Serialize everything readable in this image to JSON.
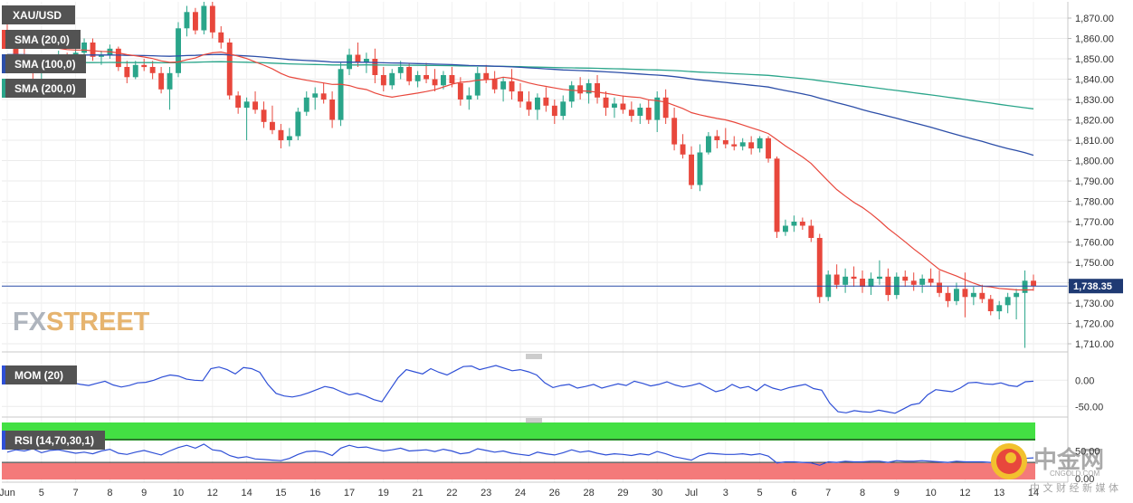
{
  "symbol": "XAU/USD",
  "last_price_label": "1,738.35",
  "legend": [
    {
      "label": "SMA (20,0)",
      "color": "#e8473c"
    },
    {
      "label": "SMA (100,0)",
      "color": "#2c4ea8"
    },
    {
      "label": "SMA (200,0)",
      "color": "#2aa58a"
    }
  ],
  "watermark": {
    "prefix": "FX",
    "suffix": "STREET"
  },
  "brand": {
    "name": "中金网",
    "url": "CNGOLD.COM",
    "slogan": "中 文 财 经 新 媒 体"
  },
  "colors": {
    "up_candle": "#2aa58a",
    "down_candle": "#e8473c",
    "price_line": "#2c4ea8",
    "momentum": "#2e4fd6",
    "rsi": "#2e4fd6",
    "rsi_overbought": "#43e043",
    "rsi_oversold": "#f47a7a",
    "legend_bg": "#535353"
  },
  "chart_data": [
    {
      "type": "candlestick",
      "title": "XAU/USD",
      "y_ticks": [
        "1,870.00",
        "1,860.00",
        "1,850.00",
        "1,840.00",
        "1,830.00",
        "1,820.00",
        "1,810.00",
        "1,800.00",
        "1,790.00",
        "1,780.00",
        "1,770.00",
        "1,760.00",
        "1,750.00",
        "1,740.00",
        "1,730.00",
        "1,720.00",
        "1,710.00"
      ],
      "ylim": [
        1707,
        1877
      ],
      "x_tick_labels": [
        "Jun",
        "5",
        "7",
        "8",
        "9",
        "10",
        "12",
        "14",
        "15",
        "16",
        "17",
        "19",
        "21",
        "22",
        "23",
        "24",
        "26",
        "28",
        "29",
        "30",
        "Jul",
        "3",
        "5",
        "6",
        "7",
        "8",
        "9",
        "10",
        "12",
        "13",
        "14"
      ],
      "last_price": 1738.35,
      "series": [
        {
          "name": "SMA (20,0)"
        },
        {
          "name": "SMA (100,0)"
        },
        {
          "name": "SMA (200,0)"
        }
      ],
      "ohlc": [
        [
          1864,
          1868,
          1859,
          1861
        ],
        [
          1861,
          1863,
          1849,
          1852
        ],
        [
          1852,
          1856,
          1844,
          1846
        ],
        [
          1846,
          1849,
          1840,
          1843
        ],
        [
          1843,
          1848,
          1838,
          1845
        ],
        [
          1845,
          1852,
          1843,
          1850
        ],
        [
          1850,
          1854,
          1847,
          1852
        ],
        [
          1852,
          1853,
          1844,
          1846
        ],
        [
          1846,
          1855,
          1845,
          1853
        ],
        [
          1853,
          1860,
          1851,
          1858
        ],
        [
          1858,
          1860,
          1849,
          1851
        ],
        [
          1851,
          1854,
          1847,
          1852
        ],
        [
          1852,
          1857,
          1850,
          1855
        ],
        [
          1855,
          1856,
          1844,
          1846
        ],
        [
          1846,
          1849,
          1838,
          1841
        ],
        [
          1841,
          1849,
          1840,
          1847
        ],
        [
          1847,
          1850,
          1844,
          1846
        ],
        [
          1846,
          1849,
          1840,
          1843
        ],
        [
          1843,
          1846,
          1833,
          1835
        ],
        [
          1835,
          1846,
          1825,
          1843
        ],
        [
          1843,
          1868,
          1841,
          1865
        ],
        [
          1865,
          1876,
          1861,
          1873
        ],
        [
          1873,
          1875,
          1862,
          1864
        ],
        [
          1864,
          1878,
          1862,
          1876
        ],
        [
          1876,
          1878,
          1860,
          1863
        ],
        [
          1863,
          1866,
          1855,
          1858
        ],
        [
          1858,
          1860,
          1830,
          1832
        ],
        [
          1832,
          1834,
          1823,
          1826
        ],
        [
          1826,
          1831,
          1810,
          1829
        ],
        [
          1829,
          1834,
          1823,
          1825
        ],
        [
          1825,
          1829,
          1816,
          1819
        ],
        [
          1819,
          1827,
          1813,
          1815
        ],
        [
          1815,
          1818,
          1806,
          1810
        ],
        [
          1810,
          1816,
          1807,
          1812
        ],
        [
          1812,
          1826,
          1810,
          1824
        ],
        [
          1824,
          1834,
          1822,
          1831
        ],
        [
          1831,
          1836,
          1825,
          1833
        ],
        [
          1833,
          1838,
          1828,
          1830
        ],
        [
          1830,
          1834,
          1816,
          1820
        ],
        [
          1820,
          1848,
          1817,
          1845
        ],
        [
          1845,
          1855,
          1842,
          1852
        ],
        [
          1852,
          1858,
          1846,
          1848
        ],
        [
          1848,
          1853,
          1843,
          1850
        ],
        [
          1850,
          1855,
          1838,
          1842
        ],
        [
          1842,
          1846,
          1834,
          1837
        ],
        [
          1837,
          1845,
          1835,
          1843
        ],
        [
          1843,
          1849,
          1840,
          1846
        ],
        [
          1846,
          1848,
          1837,
          1839
        ],
        [
          1839,
          1844,
          1836,
          1842
        ],
        [
          1842,
          1848,
          1838,
          1840
        ],
        [
          1840,
          1845,
          1834,
          1837
        ],
        [
          1837,
          1844,
          1835,
          1842
        ],
        [
          1842,
          1846,
          1836,
          1838
        ],
        [
          1838,
          1841,
          1827,
          1830
        ],
        [
          1830,
          1836,
          1825,
          1832
        ],
        [
          1832,
          1846,
          1830,
          1843
        ],
        [
          1843,
          1847,
          1838,
          1840
        ],
        [
          1840,
          1844,
          1833,
          1835
        ],
        [
          1835,
          1841,
          1829,
          1839
        ],
        [
          1839,
          1845,
          1830,
          1834
        ],
        [
          1834,
          1838,
          1826,
          1829
        ],
        [
          1829,
          1834,
          1822,
          1825
        ],
        [
          1825,
          1833,
          1820,
          1831
        ],
        [
          1831,
          1836,
          1824,
          1827
        ],
        [
          1827,
          1830,
          1818,
          1822
        ],
        [
          1822,
          1832,
          1820,
          1829
        ],
        [
          1829,
          1839,
          1826,
          1837
        ],
        [
          1837,
          1841,
          1830,
          1833
        ],
        [
          1833,
          1840,
          1828,
          1838
        ],
        [
          1838,
          1842,
          1828,
          1831
        ],
        [
          1831,
          1834,
          1822,
          1826
        ],
        [
          1826,
          1831,
          1821,
          1828
        ],
        [
          1828,
          1832,
          1823,
          1825
        ],
        [
          1825,
          1829,
          1819,
          1822
        ],
        [
          1822,
          1828,
          1818,
          1826
        ],
        [
          1826,
          1830,
          1818,
          1820
        ],
        [
          1820,
          1834,
          1814,
          1831
        ],
        [
          1831,
          1835,
          1818,
          1821
        ],
        [
          1821,
          1826,
          1805,
          1808
        ],
        [
          1808,
          1813,
          1801,
          1803
        ],
        [
          1803,
          1807,
          1786,
          1788
        ],
        [
          1788,
          1808,
          1785,
          1804
        ],
        [
          1804,
          1814,
          1803,
          1812
        ],
        [
          1812,
          1815,
          1806,
          1810
        ],
        [
          1810,
          1816,
          1806,
          1808
        ],
        [
          1808,
          1812,
          1805,
          1807
        ],
        [
          1807,
          1811,
          1805,
          1809
        ],
        [
          1809,
          1812,
          1803,
          1806
        ],
        [
          1806,
          1812,
          1804,
          1811
        ],
        [
          1811,
          1812,
          1799,
          1801
        ],
        [
          1801,
          1802,
          1762,
          1765
        ],
        [
          1765,
          1771,
          1763,
          1768
        ],
        [
          1768,
          1773,
          1765,
          1770
        ],
        [
          1770,
          1772,
          1766,
          1768
        ],
        [
          1768,
          1771,
          1760,
          1762
        ],
        [
          1762,
          1764,
          1730,
          1733
        ],
        [
          1733,
          1746,
          1731,
          1744
        ],
        [
          1744,
          1749,
          1737,
          1739
        ],
        [
          1739,
          1747,
          1735,
          1743
        ],
        [
          1743,
          1748,
          1738,
          1742
        ],
        [
          1742,
          1746,
          1735,
          1738
        ],
        [
          1738,
          1745,
          1734,
          1742
        ],
        [
          1742,
          1751,
          1739,
          1743
        ],
        [
          1743,
          1747,
          1731,
          1734
        ],
        [
          1734,
          1745,
          1732,
          1743
        ],
        [
          1743,
          1746,
          1738,
          1741
        ],
        [
          1741,
          1745,
          1736,
          1739
        ],
        [
          1739,
          1744,
          1735,
          1742
        ],
        [
          1742,
          1747,
          1738,
          1740
        ],
        [
          1740,
          1746,
          1733,
          1735
        ],
        [
          1735,
          1738,
          1728,
          1731
        ],
        [
          1731,
          1740,
          1729,
          1737
        ],
        [
          1737,
          1745,
          1723,
          1733
        ],
        [
          1733,
          1738,
          1729,
          1735
        ],
        [
          1735,
          1739,
          1730,
          1732
        ],
        [
          1732,
          1734,
          1724,
          1726
        ],
        [
          1726,
          1731,
          1722,
          1729
        ],
        [
          1729,
          1735,
          1725,
          1733
        ],
        [
          1733,
          1737,
          1722,
          1735
        ],
        [
          1735,
          1746,
          1708,
          1741
        ],
        [
          1741,
          1744,
          1736,
          1738.35
        ]
      ]
    },
    {
      "type": "line",
      "title": "MOM (20)",
      "y_ticks": [
        "0.00",
        "-50.00"
      ],
      "ylim": [
        -65,
        28
      ],
      "series": [
        {
          "name": "MOM (20)",
          "values": [
            2,
            8,
            12,
            5,
            -2,
            4,
            6,
            3,
            -5,
            -8,
            -10,
            -6,
            -2,
            -9,
            -13,
            -10,
            -5,
            -4,
            0,
            6,
            10,
            8,
            2,
            0,
            -1,
            22,
            25,
            20,
            12,
            24,
            22,
            15,
            -8,
            -25,
            -30,
            -32,
            -29,
            -24,
            -18,
            -12,
            -15,
            -22,
            -28,
            -25,
            -30,
            -37,
            -41,
            -18,
            5,
            20,
            16,
            12,
            22,
            15,
            10,
            18,
            26,
            27,
            20,
            24,
            28,
            23,
            18,
            20,
            16,
            10,
            -5,
            -14,
            -10,
            -8,
            -15,
            -12,
            -8,
            -15,
            -11,
            -7,
            -10,
            -2,
            -6,
            -11,
            -8,
            -3,
            -9,
            -13,
            -10,
            -6,
            -14,
            -22,
            -18,
            -8,
            -15,
            -12,
            -20,
            -8,
            -15,
            -19,
            -14,
            -11,
            -8,
            -16,
            -19,
            -44,
            -60,
            -62,
            -58,
            -60,
            -61,
            -57,
            -60,
            -63,
            -55,
            -47,
            -44,
            -28,
            -18,
            -20,
            -22,
            -15,
            -5,
            -4,
            -7,
            -8,
            -5,
            -10,
            -12,
            -3,
            -2
          ]
        }
      ]
    },
    {
      "type": "line",
      "title": "RSI (14,70,30,1)",
      "y_ticks": [
        "50.00",
        "0.00"
      ],
      "ylim": [
        0,
        100
      ],
      "overbought": 70,
      "oversold": 30,
      "series": [
        {
          "name": "RSI (14,70,30,1)",
          "values": [
            48,
            52,
            50,
            54,
            47,
            51,
            52,
            49,
            46,
            48,
            45,
            50,
            53,
            46,
            44,
            48,
            51,
            47,
            43,
            50,
            56,
            60,
            55,
            62,
            52,
            50,
            42,
            38,
            40,
            36,
            35,
            34,
            33,
            37,
            44,
            49,
            50,
            48,
            42,
            55,
            60,
            56,
            57,
            53,
            50,
            52,
            55,
            50,
            51,
            52,
            49,
            53,
            50,
            45,
            47,
            54,
            51,
            48,
            50,
            46,
            44,
            42,
            48,
            45,
            43,
            47,
            52,
            48,
            50,
            46,
            43,
            45,
            44,
            42,
            45,
            43,
            49,
            45,
            40,
            37,
            34,
            42,
            46,
            45,
            44,
            44,
            45,
            43,
            45,
            41,
            29,
            31,
            31,
            30,
            29,
            25,
            31,
            30,
            32,
            31,
            31,
            32,
            32,
            30,
            33,
            32,
            32,
            33,
            32,
            31,
            30,
            32,
            31,
            31,
            31,
            30,
            31,
            32,
            31,
            37,
            38
          ]
        }
      ]
    }
  ]
}
